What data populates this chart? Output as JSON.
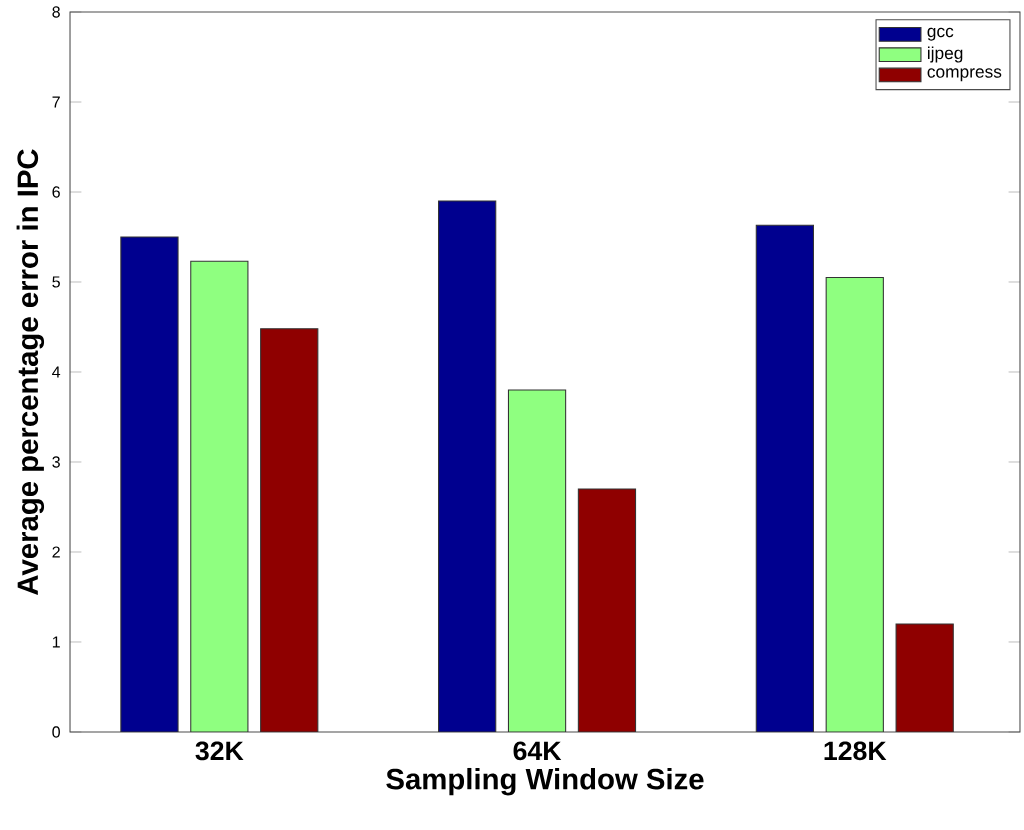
{
  "chart_data": {
    "type": "bar",
    "xlabel": "Sampling Window Size",
    "ylabel": "Average percentage error in IPC",
    "categories": [
      "32K",
      "64K",
      "128K"
    ],
    "series": [
      {
        "name": "gcc",
        "color": "#00008f",
        "values": [
          5.5,
          5.9,
          5.63
        ]
      },
      {
        "name": "ijpeg",
        "color": "#8fff80",
        "values": [
          5.23,
          3.8,
          5.05
        ]
      },
      {
        "name": "compress",
        "color": "#8f0000",
        "values": [
          4.48,
          2.7,
          1.2
        ]
      }
    ],
    "ylim": [
      0,
      8
    ],
    "yticks": [
      0,
      1,
      2,
      3,
      4,
      5,
      6,
      7,
      8
    ],
    "legend": "top right"
  }
}
